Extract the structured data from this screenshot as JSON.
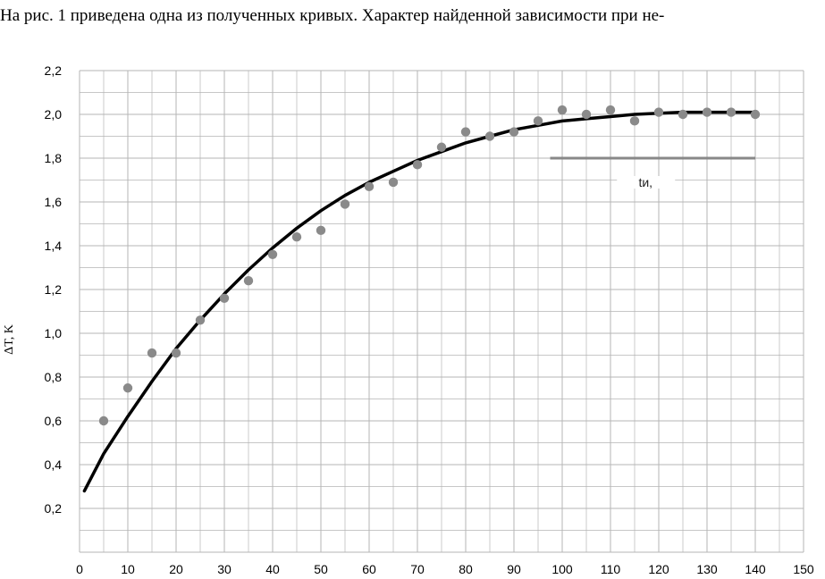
{
  "header": {
    "text": "На рис. 1 приведена одна из полученных кривых. Характер найденной зависимости при не-"
  },
  "chart_data": {
    "type": "scatter",
    "xlabel": "",
    "ylabel": "ΔT, K",
    "xlim": [
      0,
      150
    ],
    "ylim": [
      0,
      2.2
    ],
    "grid": true,
    "xticks": [
      "0",
      "10",
      "20",
      "30",
      "40",
      "50",
      "60",
      "70",
      "80",
      "90",
      "100",
      "110",
      "120",
      "130",
      "140",
      "150"
    ],
    "yticks": [
      "0,2",
      "0,4",
      "0,6",
      "0,8",
      "1,0",
      "1,2",
      "1,4",
      "1,6",
      "1,8",
      "2,0",
      "2,2"
    ],
    "colors": {
      "points": "#8a8a8a",
      "fit": "#000000",
      "marker": "#888888",
      "grid": "#b5b5b5"
    },
    "series": [
      {
        "kind": "points",
        "x": [
          5,
          10,
          15,
          20,
          25,
          30,
          35,
          40,
          45,
          50,
          55,
          60,
          65,
          70,
          75,
          80,
          85,
          90,
          95,
          100,
          105,
          110,
          115,
          120,
          125,
          130,
          135,
          140
        ],
        "y": [
          0.6,
          0.75,
          0.91,
          0.91,
          1.06,
          1.16,
          1.24,
          1.36,
          1.44,
          1.47,
          1.59,
          1.67,
          1.69,
          1.77,
          1.85,
          1.92,
          1.9,
          1.92,
          1.97,
          2.02,
          2.0,
          2.02,
          1.97,
          2.01,
          2.0,
          2.01,
          2.01,
          2.0
        ]
      },
      {
        "kind": "fit",
        "x": [
          1,
          5,
          10,
          15,
          20,
          25,
          30,
          35,
          40,
          45,
          50,
          55,
          60,
          65,
          70,
          75,
          80,
          85,
          90,
          95,
          100,
          105,
          110,
          115,
          120,
          125,
          130,
          135,
          140
        ],
        "y": [
          0.28,
          0.45,
          0.62,
          0.78,
          0.93,
          1.06,
          1.18,
          1.29,
          1.39,
          1.48,
          1.56,
          1.63,
          1.69,
          1.74,
          1.79,
          1.83,
          1.87,
          1.9,
          1.93,
          1.95,
          1.97,
          1.98,
          1.99,
          2.0,
          2.005,
          2.01,
          2.01,
          2.01,
          2.01
        ]
      }
    ],
    "annotations": [
      {
        "label": "tи,",
        "x_from": 97.5,
        "x_to": 140,
        "y": 1.8
      }
    ]
  }
}
